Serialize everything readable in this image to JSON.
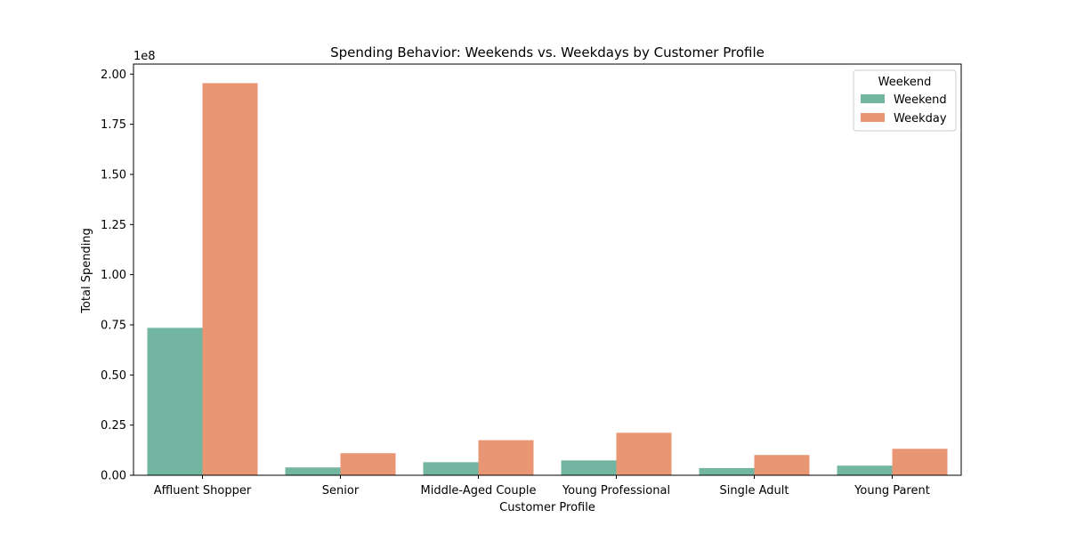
{
  "chart_data": {
    "type": "bar",
    "title": "Spending Behavior: Weekends vs. Weekdays by Customer Profile",
    "xlabel": "Customer Profile",
    "ylabel": "Total Spending",
    "y_offset_label": "1e8",
    "categories": [
      "Affluent Shopper",
      "Senior",
      "Middle-Aged Couple",
      "Young Professional",
      "Single Adult",
      "Young Parent"
    ],
    "series": [
      {
        "name": "Weekend",
        "color": "#72b6a1",
        "values": [
          73500000,
          3900000,
          6500000,
          7400000,
          3600000,
          4800000
        ]
      },
      {
        "name": "Weekday",
        "color": "#e99675",
        "values": [
          195500000,
          11000000,
          17500000,
          21200000,
          10100000,
          13200000
        ]
      }
    ],
    "ylim": [
      0,
      205000000
    ],
    "yticks": [
      0,
      25000000,
      50000000,
      75000000,
      100000000,
      125000000,
      150000000,
      175000000,
      200000000
    ],
    "ytick_labels": [
      "0.00",
      "0.25",
      "0.50",
      "0.75",
      "1.00",
      "1.25",
      "1.50",
      "1.75",
      "2.00"
    ],
    "grid": false,
    "legend": {
      "title": "Weekend",
      "placement": "top-right"
    }
  }
}
